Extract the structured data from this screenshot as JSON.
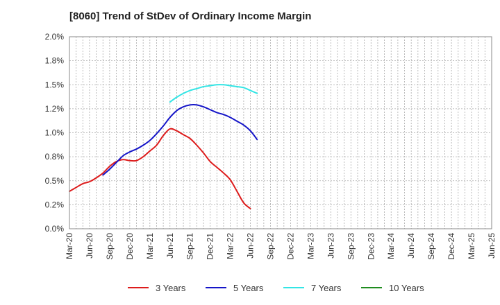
{
  "chart_data": {
    "type": "line",
    "title": "[8060]  Trend of StDev of Ordinary Income Margin",
    "xlabel": "",
    "ylabel": "",
    "ylim": [
      0,
      2.0
    ],
    "y_ticks": [
      0,
      0.25,
      0.5,
      0.75,
      1.0,
      1.25,
      1.5,
      1.75,
      2.0
    ],
    "y_tick_labels": [
      "0.0%",
      "0.2%",
      "0.5%",
      "0.8%",
      "1.0%",
      "1.2%",
      "1.5%",
      "1.8%",
      "2.0%"
    ],
    "x_tick_labels": [
      "Mar-20",
      "Jun-20",
      "Sep-20",
      "Dec-20",
      "Mar-21",
      "Jun-21",
      "Sep-21",
      "Dec-21",
      "Mar-22",
      "Jun-22",
      "Sep-22",
      "Dec-22",
      "Mar-23",
      "Jun-23",
      "Sep-23",
      "Dec-23",
      "Mar-24",
      "Jun-24",
      "Sep-24",
      "Dec-24",
      "Mar-25",
      "Jun-25"
    ],
    "grid": true,
    "legend_position": "bottom",
    "series": [
      {
        "name": "3 Years",
        "color": "#dd1c1c",
        "start_index": 0,
        "values": [
          0.39,
          0.43,
          0.47,
          0.49,
          0.53,
          0.58,
          0.65,
          0.7,
          0.72,
          0.71,
          0.71,
          0.75,
          0.81,
          0.87,
          0.97,
          1.04,
          1.02,
          0.98,
          0.94,
          0.87,
          0.79,
          0.7,
          0.64,
          0.58,
          0.51,
          0.39,
          0.27,
          0.21
        ]
      },
      {
        "name": "5 Years",
        "color": "#1515c8",
        "start_index": 5,
        "values": [
          0.56,
          0.62,
          0.69,
          0.76,
          0.8,
          0.83,
          0.87,
          0.92,
          0.99,
          1.07,
          1.16,
          1.23,
          1.27,
          1.29,
          1.29,
          1.27,
          1.24,
          1.21,
          1.19,
          1.16,
          1.12,
          1.08,
          1.02,
          0.93
        ]
      },
      {
        "name": "7 Years",
        "color": "#33e5e5",
        "start_index": 15,
        "values": [
          1.32,
          1.37,
          1.41,
          1.44,
          1.46,
          1.48,
          1.49,
          1.5,
          1.5,
          1.49,
          1.48,
          1.47,
          1.44,
          1.41
        ]
      },
      {
        "name": "10 Years",
        "color": "#1f8c1f",
        "start_index": 0,
        "values": []
      }
    ]
  }
}
